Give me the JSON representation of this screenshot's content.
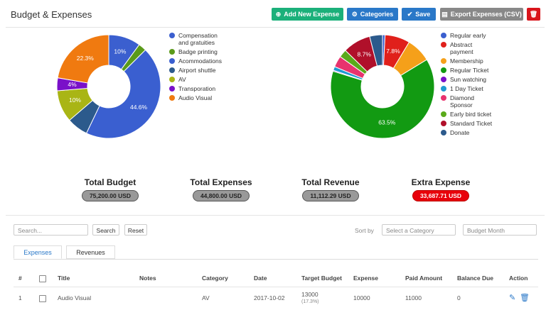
{
  "header": {
    "title": "Budget & Expenses",
    "buttons": [
      "Add New Expense",
      "Categories",
      "Save",
      "Export Expenses (CSV)"
    ]
  },
  "chart_data": [
    {
      "type": "donut",
      "categories": [
        "Compensation and gratuities",
        "Badge printing",
        "Acommodations",
        "Airport shuttle",
        "AV",
        "Transporation",
        "Audio Visual"
      ],
      "values": [
        10,
        2.5,
        44.6,
        6.6,
        10,
        4,
        22.3
      ],
      "value_labels": [
        "10%",
        null,
        "44.6%",
        null,
        "10%",
        "4%",
        "22.3%"
      ],
      "colors": [
        "#3b5fcf",
        "#5a9a1a",
        "#3a5fd0",
        "#2c5a8c",
        "#a9b515",
        "#7a10c9",
        "#f07a10"
      ]
    },
    {
      "type": "donut",
      "categories": [
        "Regular early",
        "Abstract payment",
        "Membership",
        "Regular Ticket",
        "Sun watching",
        "1 Day Ticket",
        "Diamond Sponsor",
        "Early bird ticket",
        "Standard Ticket",
        "Donate"
      ],
      "values": [
        0.8,
        7.8,
        7.7,
        63.5,
        0.3,
        1.2,
        3.5,
        2.5,
        8.7,
        4.0
      ],
      "value_labels": [
        null,
        "7.8%",
        null,
        "63.5%",
        null,
        null,
        null,
        null,
        "8.7%",
        null
      ],
      "colors": [
        "#3b5fcf",
        "#e0201b",
        "#f5a01a",
        "#129a12",
        "#7a10c9",
        "#1f9ad2",
        "#e8336e",
        "#5aaa1a",
        "#b0102a",
        "#2c5a8c"
      ]
    }
  ],
  "totals": [
    {
      "label": "Total Budget",
      "value": "75,200.00 USD"
    },
    {
      "label": "Total Expenses",
      "value": "44,800.00 USD"
    },
    {
      "label": "Total Revenue",
      "value": "11,112.29 USD"
    },
    {
      "label": "Extra Expense",
      "value": "33,687.71 USD"
    }
  ],
  "filters": {
    "search": "Search...",
    "search_button": "Search",
    "reset_button": "Reset",
    "sort_label": "Sort by",
    "category": "Select a Category",
    "month": "Budget Month"
  },
  "tabs": [
    "Expenses",
    "Revenues"
  ],
  "table": {
    "columns": [
      "#",
      "Title",
      "Notes",
      "Category",
      "Date",
      "Target Budget",
      "Expense",
      "Paid Amount",
      "Balance Due",
      "Action"
    ],
    "rows": [
      {
        "num": "1",
        "title": "Audio Visual",
        "category": "AV",
        "date": "2017-10-02",
        "target": "13000",
        "target_pct": "(17.3%)",
        "expense": "10000",
        "paid": "11000",
        "balance": "0"
      }
    ]
  }
}
